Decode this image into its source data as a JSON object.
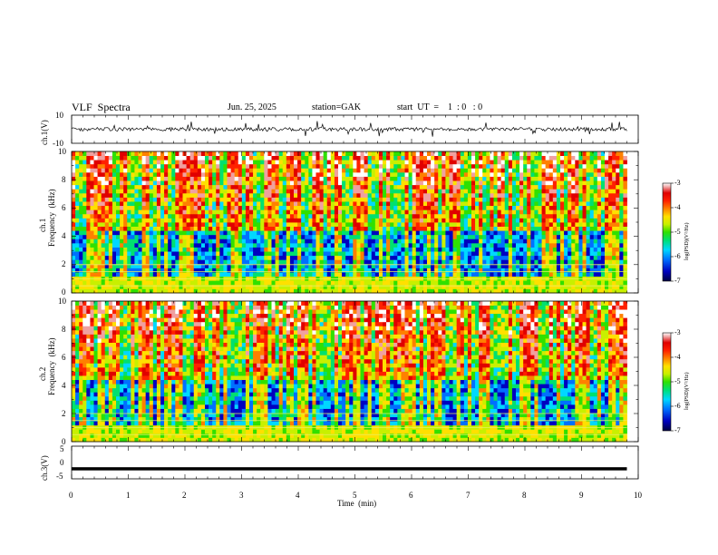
{
  "header": {
    "title": "VLF  Spectra",
    "date": "Jun. 25, 2025",
    "station": "station=GAK",
    "start": "start  UT  =    1  : 0   : 0"
  },
  "panels": {
    "ch1_wave": {
      "ylabel": "ch.1(V)",
      "ticks": [
        "10",
        "-10"
      ]
    },
    "ch1_spec": {
      "ylabel1": "ch.1",
      "ylabel2": "Frequency  (kHz)",
      "ticks": [
        "10",
        "8",
        "6",
        "4",
        "2",
        "0"
      ]
    },
    "ch2_spec": {
      "ylabel1": "ch.2",
      "ylabel2": "Frequency  (kHz)",
      "ticks": [
        "10",
        "8",
        "6",
        "4",
        "2",
        "0"
      ]
    },
    "ch3_wave": {
      "ylabel": "ch.3(V)",
      "ticks": [
        "5",
        "0",
        "-5"
      ]
    }
  },
  "colorbar": {
    "label": "log(PSD)(V²/Hz)",
    "ticks": [
      "-3",
      "-4",
      "-5",
      "-6",
      "-7"
    ],
    "colors": [
      "#000040",
      "#0000c0",
      "#0070ff",
      "#00d8ff",
      "#00e070",
      "#30e000",
      "#c8f000",
      "#ffe000",
      "#ff8000",
      "#ff2000",
      "#e00000",
      "#f0a0a0",
      "#ffffff"
    ]
  },
  "chart_data": {
    "type": "heatmap",
    "title": "VLF  Spectra",
    "xlabel": "Time  (min)",
    "x_ticks": [
      "0",
      "1",
      "2",
      "3",
      "4",
      "5",
      "6",
      "7",
      "8",
      "9",
      "10"
    ],
    "xlim": [
      0,
      10
    ],
    "data_end_min": 9.8,
    "series": [
      {
        "name": "ch.1",
        "ylabel": "Frequency (kHz)",
        "ylim": [
          0,
          10
        ],
        "zlim": [
          -7,
          -3
        ]
      },
      {
        "name": "ch.2",
        "ylabel": "Frequency (kHz)",
        "ylim": [
          0,
          10
        ],
        "zlim": [
          -7,
          -3
        ]
      }
    ],
    "ch1_voltage_range": [
      -10,
      10
    ],
    "ch1_voltage_level": 0,
    "ch3_voltage_range": [
      -5,
      5
    ],
    "ch3_voltage_level": -2
  }
}
